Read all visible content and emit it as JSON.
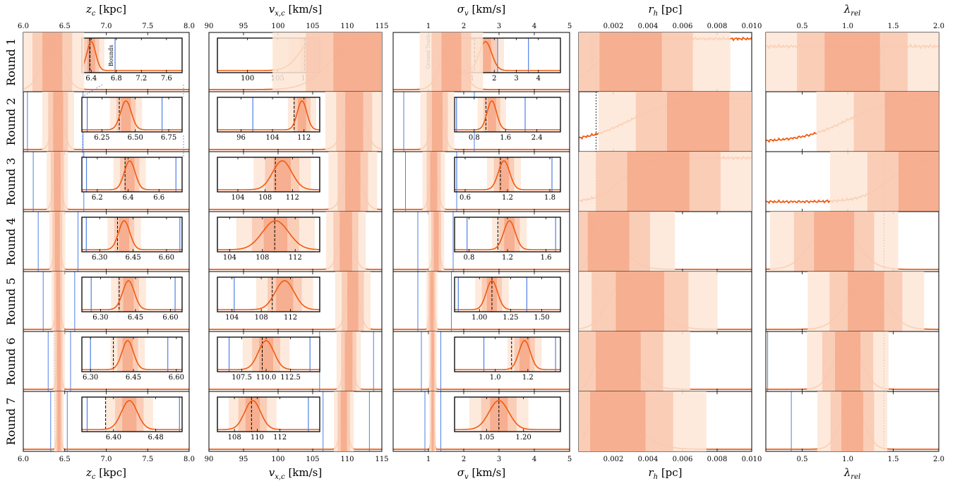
{
  "chart_data": {
    "type": "line",
    "description_rows": [
      "Round 1",
      "Round 2",
      "Round 3",
      "Round 4",
      "Round 5",
      "Round 6",
      "Round 7"
    ],
    "annotations": {
      "ground_truth": "Ground Truth",
      "bounds": "Bounds"
    },
    "colors": {
      "posterior": "#f25a0f",
      "shade_light": "#fde6d6",
      "shade_mid": "#f9c8b0",
      "shade_dark": "#f5a98a",
      "bounds": "#4e7fe6",
      "truth": "#000000"
    },
    "columns": [
      {
        "key": "zc",
        "xlabel_main": "z",
        "xlabel_sub": "c",
        "xlabel_unit": "[kpc]",
        "xlim": [
          6.0,
          8.0
        ],
        "ticks": [
          6.0,
          6.5,
          7.0,
          7.5,
          8.0
        ],
        "tick_labels": [
          "6.0",
          "6.5",
          "7.0",
          "7.5",
          "8.0"
        ],
        "truth": 6.38,
        "rows": [
          {
            "peak": 6.35,
            "width": 0.12,
            "bounds": [
              6.0,
              8.0
            ],
            "inset": {
              "xlim": [
                6.25,
                7.85
              ],
              "ticks": [
                6.4,
                6.8,
                7.2,
                7.6
              ],
              "labels": [
                "6.4",
                "6.8",
                "7.2",
                "7.6"
              ],
              "peak": 6.4,
              "width": 0.07,
              "bounds": [
                6.37,
                6.78
              ],
              "truth": 6.38
            }
          },
          {
            "peak": 6.42,
            "width": 0.06,
            "bounds": [
              6.05,
              6.72
            ],
            "inset": {
              "xlim": [
                6.1,
                6.85
              ],
              "ticks": [
                6.25,
                6.5,
                6.75
              ],
              "labels": [
                "6.25",
                "6.50",
                "6.75"
              ],
              "peak": 6.43,
              "width": 0.04,
              "bounds": [
                6.14,
                6.7
              ],
              "truth": 6.38
            }
          },
          {
            "peak": 6.41,
            "width": 0.04,
            "bounds": [
              6.12,
              6.73
            ],
            "inset": {
              "xlim": [
                6.1,
                6.75
              ],
              "ticks": [
                6.2,
                6.4,
                6.6
              ],
              "labels": [
                "6.2",
                "6.4",
                "6.6"
              ],
              "peak": 6.41,
              "width": 0.035,
              "bounds": [
                6.13,
                6.71
              ],
              "truth": 6.38
            }
          },
          {
            "peak": 6.41,
            "width": 0.03,
            "bounds": [
              6.18,
              6.66
            ],
            "inset": {
              "xlim": [
                6.22,
                6.67
              ],
              "ticks": [
                6.3,
                6.45,
                6.6
              ],
              "labels": [
                "6.30",
                "6.45",
                "6.60"
              ],
              "peak": 6.41,
              "width": 0.025,
              "bounds": [
                6.24,
                6.66
              ],
              "truth": 6.38
            }
          },
          {
            "peak": 6.42,
            "width": 0.025,
            "bounds": [
              6.24,
              6.62
            ],
            "inset": {
              "xlim": [
                6.22,
                6.65
              ],
              "ticks": [
                6.3,
                6.45,
                6.6
              ],
              "labels": [
                "6.30",
                "6.45",
                "6.60"
              ],
              "peak": 6.42,
              "width": 0.025,
              "bounds": [
                6.26,
                6.62
              ],
              "truth": 6.38
            }
          },
          {
            "peak": 6.43,
            "width": 0.022,
            "bounds": [
              6.3,
              6.57
            ],
            "inset": {
              "xlim": [
                6.27,
                6.62
              ],
              "ticks": [
                6.3,
                6.45,
                6.6
              ],
              "labels": [
                "6.30",
                "6.45",
                "6.60"
              ],
              "peak": 6.43,
              "width": 0.02,
              "bounds": [
                6.3,
                6.57
              ],
              "truth": 6.38
            }
          },
          {
            "peak": 6.43,
            "width": 0.018,
            "bounds": [
              6.33,
              6.53
            ],
            "inset": {
              "xlim": [
                6.34,
                6.53
              ],
              "ticks": [
                6.4,
                6.48
              ],
              "labels": [
                "6.40",
                "6.48"
              ],
              "peak": 6.43,
              "width": 0.015,
              "bounds": [
                6.35,
                6.525
              ],
              "truth": 6.385
            }
          }
        ]
      },
      {
        "key": "vxc",
        "xlabel_main": "v",
        "xlabel_sub": "x,c",
        "xlabel_unit": "[km/s]",
        "xlim": [
          90,
          115
        ],
        "ticks": [
          90,
          95,
          100,
          105,
          110,
          115
        ],
        "tick_labels": [
          "90",
          "95",
          "100",
          "105",
          "110",
          "115"
        ],
        "truth": 109.5,
        "rows": [
          {
            "peak": 112,
            "width": 4.0,
            "bounds": [
              90,
              115
            ],
            "inset": {
              "xlim": [
                95,
                112
              ],
              "ticks": [
                100,
                105,
                110
              ],
              "labels": [
                "100",
                "105",
                "110"
              ],
              "peak": 110.8,
              "width": 2.2,
              "bounds": [
                95,
                112
              ],
              "truth": 109.5
            }
          },
          {
            "peak": 111,
            "width": 1.3,
            "bounds": [
              90,
              115
            ],
            "inset": {
              "xlim": [
                90,
                116
              ],
              "ticks": [
                96,
                104,
                112
              ],
              "labels": [
                "96",
                "104",
                "112"
              ],
              "peak": 111.5,
              "width": 1.2,
              "bounds": [
                99,
                116
              ],
              "truth": 109.5
            }
          },
          {
            "peak": 110.8,
            "width": 1.1,
            "bounds": [
              90,
              115
            ],
            "inset": {
              "xlim": [
                101,
                116
              ],
              "ticks": [
                104,
                108,
                112
              ],
              "labels": [
                "104",
                "108",
                "112"
              ],
              "peak": 110.5,
              "width": 1.4,
              "bounds": [
                101,
                116
              ],
              "truth": 109.5
            }
          },
          {
            "peak": 109.8,
            "width": 0.9,
            "bounds": [
              90,
              115
            ],
            "inset": {
              "xlim": [
                102.5,
                115
              ],
              "ticks": [
                104,
                108,
                112
              ],
              "labels": [
                "104",
                "108",
                "112"
              ],
              "peak": 109.6,
              "width": 1.6,
              "bounds": [
                102.5,
                115
              ],
              "truth": 109.5
            }
          },
          {
            "peak": 110.8,
            "width": 0.8,
            "bounds": [
              90,
              115
            ],
            "inset": {
              "xlim": [
                102,
                116
              ],
              "ticks": [
                104,
                108,
                112
              ],
              "labels": [
                "104",
                "108",
                "112"
              ],
              "peak": 111.2,
              "width": 1.3,
              "bounds": [
                104.3,
                116
              ],
              "truth": 109.5
            }
          },
          {
            "peak": 110.2,
            "width": 0.55,
            "bounds": [
              106,
              113.8
            ],
            "inset": {
              "xlim": [
                105,
                115.5
              ],
              "ticks": [
                107.5,
                110,
                112.5
              ],
              "labels": [
                "107.5",
                "110.0",
                "112.5"
              ],
              "peak": 110.0,
              "width": 0.8,
              "bounds": [
                106.2,
                114.5
              ],
              "truth": 109.6
            }
          },
          {
            "peak": 109.5,
            "width": 0.45,
            "bounds": [
              106.5,
              113.2
            ],
            "inset": {
              "xlim": [
                106.5,
                115.5
              ],
              "ticks": [
                108,
                110,
                112
              ],
              "labels": [
                "108",
                "110",
                "112"
              ],
              "peak": 109.6,
              "width": 0.7,
              "bounds": [
                106.5,
                114.5
              ],
              "truth": 109.5
            }
          }
        ]
      },
      {
        "key": "sigv",
        "xlabel_main": "σ",
        "xlabel_sub": "v",
        "xlabel_unit": "[km/s]",
        "xlim": [
          0,
          5
        ],
        "ticks": [
          0,
          1,
          2,
          3,
          4,
          5
        ],
        "tick_labels": [
          "",
          "1",
          "2",
          "3",
          "4",
          "5"
        ],
        "truth": 1.1,
        "rows": [
          {
            "peak": 1.65,
            "width": 0.28,
            "bounds": [
              0,
              5
            ],
            "inset": {
              "xlim": [
                0.2,
                5.0
              ],
              "ticks": [
                1,
                2,
                3,
                4
              ],
              "labels": [
                "1",
                "2",
                "3",
                "4"
              ],
              "peak": 1.6,
              "width": 0.28,
              "bounds": [
                2.15,
                3.55
              ],
              "truth": 1.1
            }
          },
          {
            "peak": 1.25,
            "width": 0.15,
            "bounds": [
              0.3,
              2.3
            ],
            "inset": {
              "xlim": [
                0.3,
                3.0
              ],
              "ticks": [
                0.8,
                1.6,
                2.4
              ],
              "labels": [
                "0.8",
                "1.6",
                "2.4"
              ],
              "peak": 1.25,
              "width": 0.12,
              "bounds": [
                0.35,
                2.1
              ],
              "truth": 1.1
            }
          },
          {
            "peak": 1.15,
            "width": 0.1,
            "bounds": [
              0.35,
              1.8
            ],
            "inset": {
              "xlim": [
                0.45,
                1.95
              ],
              "ticks": [
                0.6,
                1.2,
                1.8
              ],
              "labels": [
                "0.6",
                "1.2",
                "1.8"
              ],
              "peak": 1.15,
              "width": 0.08,
              "bounds": [
                0.48,
                1.83
              ],
              "truth": 1.1
            }
          },
          {
            "peak": 1.22,
            "width": 0.07,
            "bounds": [
              0.7,
              1.7
            ],
            "inset": {
              "xlim": [
                0.65,
                1.75
              ],
              "ticks": [
                0.8,
                1.2,
                1.6
              ],
              "labels": [
                "0.8",
                "1.2",
                "1.6"
              ],
              "peak": 1.22,
              "width": 0.06,
              "bounds": [
                0.78,
                1.7
              ],
              "truth": 1.1
            }
          },
          {
            "peak": 1.1,
            "width": 0.05,
            "bounds": [
              0.7,
              1.65
            ],
            "inset": {
              "xlim": [
                0.8,
                1.65
              ],
              "ticks": [
                1.0,
                1.25,
                1.5
              ],
              "labels": [
                "1.00",
                "1.25",
                "1.50"
              ],
              "peak": 1.1,
              "width": 0.045,
              "bounds": [
                0.83,
                1.38
              ],
              "truth": 1.1
            }
          },
          {
            "peak": 1.12,
            "width": 0.035,
            "bounds": [
              0.8,
              1.35
            ],
            "inset": {
              "xlim": [
                0.75,
                1.4
              ],
              "ticks": [
                1.0,
                1.2
              ],
              "labels": [
                "1.0",
                "1.2"
              ],
              "peak": 1.18,
              "width": 0.035,
              "bounds": [
                0.93,
                1.37
              ],
              "truth": 1.1
            }
          },
          {
            "peak": 1.12,
            "width": 0.03,
            "bounds": [
              0.9,
              1.35
            ],
            "inset": {
              "xlim": [
                0.92,
                1.35
              ],
              "ticks": [
                1.05,
                1.2
              ],
              "labels": [
                "1.05",
                "1.20"
              ],
              "peak": 1.1,
              "width": 0.04,
              "bounds": [
                0.92,
                1.35
              ],
              "truth": 1.1
            }
          }
        ]
      },
      {
        "key": "rh",
        "xlabel_main": "r",
        "xlabel_sub": "h",
        "xlabel_unit": "[pc]",
        "xlim": [
          0.0,
          0.01
        ],
        "ticks": [
          0.002,
          0.004,
          0.006,
          0.008,
          0.01
        ],
        "tick_labels": [
          "0.002",
          "0.004",
          "0.006",
          "0.008",
          "0.010"
        ],
        "truth": 0.001,
        "rows": [
          {
            "shape": "sigmoid",
            "mid": 0.0012,
            "scale": 0.0006,
            "bounds": []
          },
          {
            "shape": "sigmoid",
            "mid": 0.003,
            "scale": 0.0013,
            "bounds": []
          },
          {
            "shape": "sigmoid",
            "mid": 0.0025,
            "scale": 0.0007,
            "bounds": []
          },
          {
            "shape": "skew",
            "peak": 0.001,
            "rise": 0.0003,
            "fall": 0.0012,
            "bounds": []
          },
          {
            "shape": "skew",
            "peak": 0.0027,
            "rise": 0.0009,
            "fall": 0.0014,
            "bounds": []
          },
          {
            "shape": "skew",
            "peak": 0.0015,
            "rise": 0.0005,
            "fall": 0.0013,
            "bounds": []
          },
          {
            "shape": "skew",
            "peak": 0.0013,
            "rise": 0.0006,
            "fall": 0.0016,
            "bounds": []
          }
        ]
      },
      {
        "key": "lam",
        "xlabel_main": "λ",
        "xlabel_sub": "rel",
        "xlabel_unit": "",
        "xlim": [
          0.1,
          2.0
        ],
        "ticks": [
          0.5,
          1.0,
          1.5,
          2.0
        ],
        "tick_labels": [
          "0.5",
          "1.0",
          "1.5",
          "2.0"
        ],
        "truth": 1.4,
        "rows": [
          {
            "shape": "flat",
            "bounds": []
          },
          {
            "shape": "sigmoid",
            "mid": 1.0,
            "scale": 0.25,
            "bounds": []
          },
          {
            "shape": "sigmoid",
            "mid": 1.45,
            "scale": 0.15,
            "bounds": []
          },
          {
            "shape": "gauss",
            "peak": 0.85,
            "width": 0.22,
            "bounds": []
          },
          {
            "shape": "gauss",
            "peak": 1.2,
            "width": 0.2,
            "bounds": []
          },
          {
            "shape": "gauss",
            "peak": 1.0,
            "width": 0.14,
            "bounds": [
              0.12
            ]
          },
          {
            "shape": "gauss",
            "peak": 1.05,
            "width": 0.12,
            "bounds": [
              0.38
            ]
          }
        ]
      }
    ]
  }
}
